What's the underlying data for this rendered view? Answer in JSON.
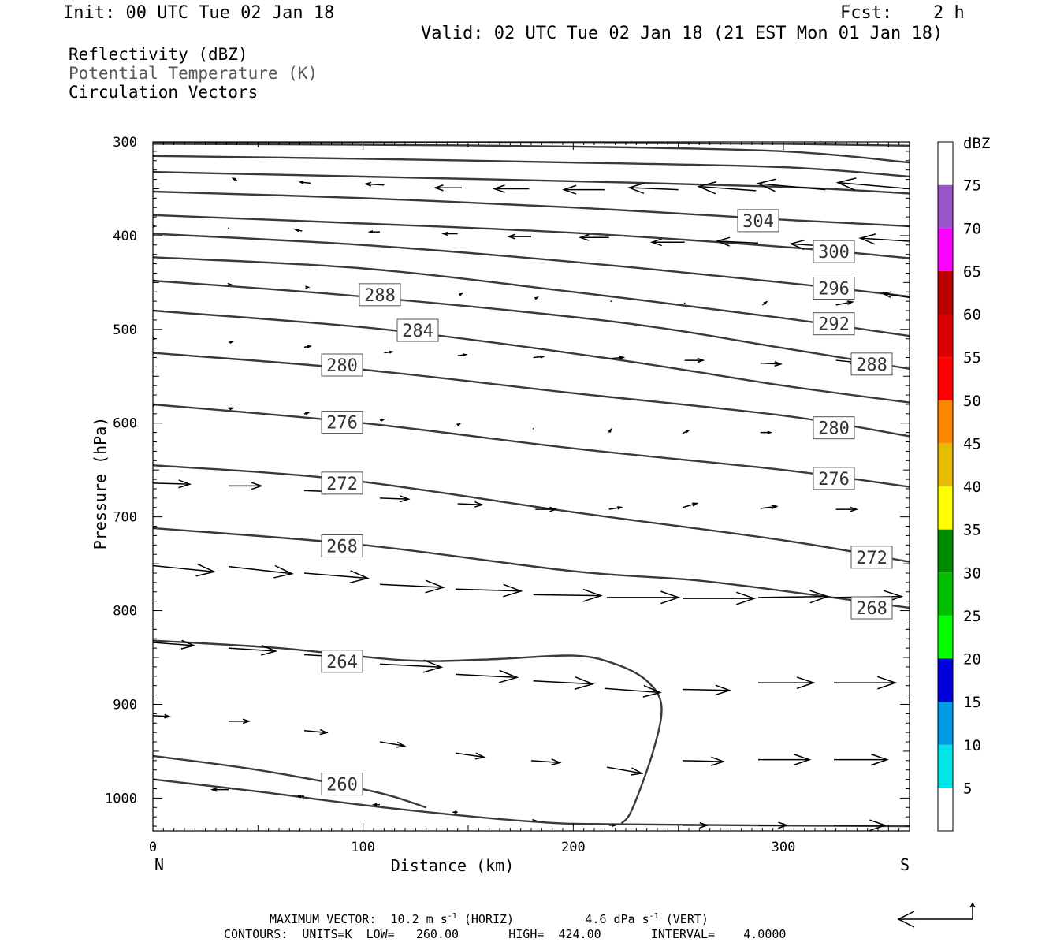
{
  "header": {
    "init": "Init: 00 UTC Tue 02 Jan 18",
    "fcst_label": "Fcst:",
    "fcst_value": "2 h",
    "valid": "Valid: 02 UTC Tue 02 Jan 18 (21 EST Mon 01 Jan 18)"
  },
  "legend": {
    "line1": "Reflectivity (dBZ)",
    "line2": "Potential Temperature (K)",
    "line3": "Circulation Vectors"
  },
  "footer": {
    "line1_prefix": "MAXIMUM VECTOR:  10.2 m s",
    "line1_sup1": "-1",
    "line1_mid": " (HORIZ)          4.6 dPa s",
    "line1_sup2": "-1",
    "line1_suffix": " (VERT)",
    "line2": "CONTOURS:  UNITS=K  LOW=   260.00       HIGH=  424.00       INTERVAL=    4.0000"
  },
  "colors": {
    "contour": "#3a3a3a",
    "vector": "#000000",
    "frame": "#000000"
  },
  "chart_data": {
    "type": "cross-section",
    "xlabel": "Distance (km)",
    "ylabel": "Pressure (hPa)",
    "xlim": [
      0,
      360
    ],
    "ylim": [
      1035,
      300
    ],
    "y_reversed": true,
    "x_ticks": [
      0,
      100,
      200,
      300
    ],
    "y_ticks": [
      300,
      400,
      500,
      600,
      700,
      800,
      900,
      1000
    ],
    "x_end_labels": {
      "left": "N",
      "right": "S"
    },
    "colorbar": {
      "title": "dBZ",
      "levels": [
        5,
        10,
        15,
        20,
        25,
        30,
        35,
        40,
        45,
        50,
        55,
        60,
        65,
        70,
        75
      ],
      "colors": [
        "#ffffff",
        "#00e6e6",
        "#0099e6",
        "#0000dd",
        "#00ff00",
        "#00c000",
        "#008800",
        "#ffff00",
        "#e6bb00",
        "#ff8800",
        "#ff0000",
        "#dd0000",
        "#bb0000",
        "#ff00ff",
        "#9955cc",
        "#ffffff"
      ]
    },
    "contours": [
      {
        "label": "260",
        "points": [
          [
            0,
            980
          ],
          [
            50,
            993
          ],
          [
            110,
            1010
          ],
          [
            180,
            1025
          ],
          [
            225,
            1028
          ],
          [
            360,
            1030
          ]
        ]
      },
      {
        "label": "260",
        "points": [
          [
            0,
            955
          ],
          [
            50,
            970
          ],
          [
            105,
            993
          ],
          [
            130,
            1010
          ]
        ]
      },
      {
        "label": "264",
        "points": [
          [
            0,
            832
          ],
          [
            60,
            840
          ],
          [
            120,
            853
          ],
          [
            160,
            852
          ],
          [
            200,
            848
          ],
          [
            220,
            857
          ],
          [
            235,
            875
          ],
          [
            242,
            902
          ],
          [
            238,
            950
          ],
          [
            228,
            1012
          ],
          [
            223,
            1027
          ]
        ]
      },
      {
        "label": "268",
        "points": [
          [
            0,
            712
          ],
          [
            100,
            730
          ],
          [
            200,
            758
          ],
          [
            260,
            768
          ],
          [
            320,
            785
          ],
          [
            360,
            797
          ]
        ]
      },
      {
        "label": "272",
        "points": [
          [
            0,
            645
          ],
          [
            90,
            660
          ],
          [
            200,
            695
          ],
          [
            300,
            725
          ],
          [
            360,
            748
          ]
        ]
      },
      {
        "label": "276",
        "points": [
          [
            0,
            580
          ],
          [
            100,
            600
          ],
          [
            200,
            627
          ],
          [
            300,
            650
          ],
          [
            360,
            668
          ]
        ]
      },
      {
        "label": "280",
        "points": [
          [
            0,
            525
          ],
          [
            100,
            543
          ],
          [
            200,
            568
          ],
          [
            300,
            592
          ],
          [
            360,
            614
          ]
        ]
      },
      {
        "label": "284",
        "points": [
          [
            0,
            480
          ],
          [
            110,
            500
          ],
          [
            220,
            532
          ],
          [
            300,
            560
          ],
          [
            360,
            578
          ]
        ]
      },
      {
        "label": "288",
        "points": [
          [
            0,
            448
          ],
          [
            100,
            465
          ],
          [
            220,
            492
          ],
          [
            300,
            520
          ],
          [
            360,
            542
          ]
        ]
      },
      {
        "label": "292",
        "points": [
          [
            0,
            423
          ],
          [
            100,
            435
          ],
          [
            200,
            460
          ],
          [
            300,
            488
          ],
          [
            360,
            507
          ]
        ]
      },
      {
        "label": "296",
        "points": [
          [
            0,
            398
          ],
          [
            100,
            410
          ],
          [
            200,
            428
          ],
          [
            300,
            450
          ],
          [
            360,
            465
          ]
        ]
      },
      {
        "label": "300",
        "points": [
          [
            0,
            378
          ],
          [
            100,
            387
          ],
          [
            200,
            397
          ],
          [
            300,
            412
          ],
          [
            360,
            424
          ]
        ]
      },
      {
        "label": "304",
        "points": [
          [
            0,
            353
          ],
          [
            100,
            360
          ],
          [
            200,
            370
          ],
          [
            300,
            383
          ],
          [
            360,
            390
          ]
        ]
      },
      {
        "label": "",
        "points": [
          [
            0,
            332
          ],
          [
            100,
            337
          ],
          [
            200,
            342
          ],
          [
            300,
            348
          ],
          [
            360,
            355
          ]
        ]
      },
      {
        "label": "",
        "points": [
          [
            0,
            315
          ],
          [
            100,
            318
          ],
          [
            200,
            322
          ],
          [
            300,
            327
          ],
          [
            360,
            337
          ]
        ]
      },
      {
        "label": "",
        "points": [
          [
            0,
            302
          ],
          [
            100,
            303
          ],
          [
            200,
            305
          ],
          [
            300,
            310
          ],
          [
            360,
            322
          ]
        ]
      },
      {
        "label": "",
        "points": [
          [
            0,
            300
          ],
          [
            60,
            300
          ],
          [
            200,
            301
          ],
          [
            300,
            302
          ],
          [
            360,
            304
          ]
        ]
      }
    ],
    "contour_labels": [
      {
        "text": "304",
        "x": 288,
        "p": 384
      },
      {
        "text": "300",
        "x": 324,
        "p": 417
      },
      {
        "text": "296",
        "x": 324,
        "p": 456
      },
      {
        "text": "288",
        "x": 108,
        "p": 463
      },
      {
        "text": "284",
        "x": 126,
        "p": 501
      },
      {
        "text": "292",
        "x": 324,
        "p": 494
      },
      {
        "text": "280",
        "x": 90,
        "p": 538
      },
      {
        "text": "288",
        "x": 342,
        "p": 537
      },
      {
        "text": "276",
        "x": 90,
        "p": 599
      },
      {
        "text": "280",
        "x": 324,
        "p": 605
      },
      {
        "text": "272",
        "x": 90,
        "p": 664
      },
      {
        "text": "276",
        "x": 324,
        "p": 659
      },
      {
        "text": "268",
        "x": 90,
        "p": 731
      },
      {
        "text": "272",
        "x": 342,
        "p": 743
      },
      {
        "text": "268",
        "x": 342,
        "p": 797
      },
      {
        "text": "264",
        "x": 90,
        "p": 854
      },
      {
        "text": "260",
        "x": 90,
        "p": 985
      }
    ],
    "vectors": [
      {
        "x": 0,
        "p": 330,
        "u": 0,
        "w": 0
      },
      {
        "x": 40,
        "p": 341,
        "u": -2,
        "w": 1
      },
      {
        "x": 75,
        "p": 344,
        "u": -5,
        "w": 0.5
      },
      {
        "x": 110,
        "p": 346,
        "u": -9,
        "w": 0.5
      },
      {
        "x": 147,
        "p": 349,
        "u": -13,
        "w": 0
      },
      {
        "x": 179,
        "p": 350,
        "u": -17,
        "w": 0
      },
      {
        "x": 215,
        "p": 351,
        "u": -20,
        "w": 0
      },
      {
        "x": 250,
        "p": 351,
        "u": -24,
        "w": 1
      },
      {
        "x": 287,
        "p": 352,
        "u": -28,
        "w": 2
      },
      {
        "x": 320,
        "p": 351,
        "u": -33,
        "w": 3
      },
      {
        "x": 360,
        "p": 350,
        "u": -35,
        "w": 3
      },
      {
        "x": 0,
        "p": 390,
        "u": 1,
        "w": 0
      },
      {
        "x": 36,
        "p": 392,
        "u": 0,
        "w": 0
      },
      {
        "x": 71,
        "p": 395,
        "u": -3,
        "w": 0.5
      },
      {
        "x": 108,
        "p": 396,
        "u": -5,
        "w": 0
      },
      {
        "x": 145,
        "p": 398,
        "u": -7,
        "w": 0
      },
      {
        "x": 180,
        "p": 401,
        "u": -11,
        "w": 0
      },
      {
        "x": 217,
        "p": 402,
        "u": -14,
        "w": 0
      },
      {
        "x": 253,
        "p": 407,
        "u": -16,
        "w": 0
      },
      {
        "x": 288,
        "p": 408,
        "u": -20,
        "w": 1
      },
      {
        "x": 325,
        "p": 412,
        "u": -22,
        "w": 1.5
      },
      {
        "x": 360,
        "p": 406,
        "u": -24,
        "w": 1.5
      },
      {
        "x": 0,
        "p": 448,
        "u": 1,
        "w": 0
      },
      {
        "x": 36,
        "p": 452,
        "u": 1,
        "w": 0
      },
      {
        "x": 73,
        "p": 455,
        "u": 1,
        "w": 0
      },
      {
        "x": 110,
        "p": 458,
        "u": 1,
        "w": 0
      },
      {
        "x": 146,
        "p": 463,
        "u": 1,
        "w": 0.5
      },
      {
        "x": 182,
        "p": 467,
        "u": 1,
        "w": 0.5
      },
      {
        "x": 218,
        "p": 470,
        "u": 0,
        "w": 0
      },
      {
        "x": 253,
        "p": 472,
        "u": 0,
        "w": 0
      },
      {
        "x": 290,
        "p": 474,
        "u": 2,
        "w": 1.5
      },
      {
        "x": 325,
        "p": 474,
        "u": 8,
        "w": 1.5
      },
      {
        "x": 360,
        "p": 466,
        "u": -13,
        "w": 2
      },
      {
        "x": 0,
        "p": 510,
        "u": 1,
        "w": 0
      },
      {
        "x": 36,
        "p": 514,
        "u": 2,
        "w": 0.5
      },
      {
        "x": 72,
        "p": 519,
        "u": 3,
        "w": 0.5
      },
      {
        "x": 110,
        "p": 525,
        "u": 4,
        "w": 0.5
      },
      {
        "x": 145,
        "p": 528,
        "u": 4,
        "w": 0.5
      },
      {
        "x": 181,
        "p": 530,
        "u": 5,
        "w": 0.5
      },
      {
        "x": 218,
        "p": 531,
        "u": 6,
        "w": 0.5
      },
      {
        "x": 253,
        "p": 533,
        "u": 9,
        "w": 0
      },
      {
        "x": 289,
        "p": 536,
        "u": 10,
        "w": -0.5
      },
      {
        "x": 325,
        "p": 533,
        "u": 10,
        "w": -1
      },
      {
        "x": 0,
        "p": 581,
        "u": 1,
        "w": 0.5
      },
      {
        "x": 36,
        "p": 585,
        "u": 2,
        "w": 0.5
      },
      {
        "x": 72,
        "p": 590,
        "u": 2,
        "w": 0.5
      },
      {
        "x": 108,
        "p": 597,
        "u": 2,
        "w": 0.5
      },
      {
        "x": 145,
        "p": 602,
        "u": 1,
        "w": 0.5
      },
      {
        "x": 181,
        "p": 606,
        "u": 0,
        "w": 0.5
      },
      {
        "x": 217,
        "p": 610,
        "u": 1,
        "w": 1.5
      },
      {
        "x": 252,
        "p": 611,
        "u": 3,
        "w": 1.5
      },
      {
        "x": 289,
        "p": 610,
        "u": 5,
        "w": 0
      },
      {
        "x": 325,
        "p": 610,
        "u": 7,
        "w": -0.5
      },
      {
        "x": 0,
        "p": 664,
        "u": 18,
        "w": -0.5
      },
      {
        "x": 36,
        "p": 667,
        "u": 16,
        "w": 0
      },
      {
        "x": 72,
        "p": 672,
        "u": 14,
        "w": -0.5
      },
      {
        "x": 108,
        "p": 680,
        "u": 14,
        "w": -0.5
      },
      {
        "x": 145,
        "p": 686,
        "u": 12,
        "w": -0.5
      },
      {
        "x": 182,
        "p": 692,
        "u": 10,
        "w": 0
      },
      {
        "x": 217,
        "p": 692,
        "u": 6,
        "w": 1
      },
      {
        "x": 252,
        "p": 690,
        "u": 7,
        "w": 2
      },
      {
        "x": 289,
        "p": 691,
        "u": 8,
        "w": 1
      },
      {
        "x": 325,
        "p": 692,
        "u": 10,
        "w": 0
      },
      {
        "x": 0,
        "p": 752,
        "u": 30,
        "w": -3
      },
      {
        "x": 36,
        "p": 753,
        "u": 31,
        "w": -3.5
      },
      {
        "x": 72,
        "p": 760,
        "u": 31,
        "w": -2.5
      },
      {
        "x": 108,
        "p": 772,
        "u": 31,
        "w": -1.5
      },
      {
        "x": 144,
        "p": 777,
        "u": 32,
        "w": -1
      },
      {
        "x": 181,
        "p": 783,
        "u": 33,
        "w": -0.5
      },
      {
        "x": 216,
        "p": 786,
        "u": 35,
        "w": 0
      },
      {
        "x": 252,
        "p": 787,
        "u": 35,
        "w": 0
      },
      {
        "x": 288,
        "p": 786,
        "u": 34,
        "w": 0.5
      },
      {
        "x": 324,
        "p": 786,
        "u": 33,
        "w": 0.5
      },
      {
        "x": 360,
        "p": 787,
        "u": 32,
        "w": 0.5
      },
      {
        "x": 0,
        "p": 834,
        "u": 20,
        "w": -1.5
      },
      {
        "x": 36,
        "p": 840,
        "u": 23,
        "w": -1.5
      },
      {
        "x": 72,
        "p": 847,
        "u": 27,
        "w": -1.5
      },
      {
        "x": 108,
        "p": 857,
        "u": 30,
        "w": -1.5
      },
      {
        "x": 144,
        "p": 868,
        "u": 30,
        "w": -1.5
      },
      {
        "x": 181,
        "p": 875,
        "u": 29,
        "w": -1.5
      },
      {
        "x": 215,
        "p": 883,
        "u": 27,
        "w": -2
      },
      {
        "x": 252,
        "p": 884,
        "u": 23,
        "w": -0.5
      },
      {
        "x": 288,
        "p": 877,
        "u": 27,
        "w": 0
      },
      {
        "x": 324,
        "p": 877,
        "u": 30,
        "w": 0
      },
      {
        "x": 0,
        "p": 912,
        "u": 8,
        "w": -0.5
      },
      {
        "x": 36,
        "p": 918,
        "u": 10,
        "w": 0
      },
      {
        "x": 72,
        "p": 928,
        "u": 11,
        "w": -1
      },
      {
        "x": 108,
        "p": 940,
        "u": 12,
        "w": -2
      },
      {
        "x": 144,
        "p": 952,
        "u": 14,
        "w": -2
      },
      {
        "x": 180,
        "p": 960,
        "u": 14,
        "w": -1
      },
      {
        "x": 216,
        "p": 967,
        "u": 17,
        "w": -3
      },
      {
        "x": 252,
        "p": 960,
        "u": 20,
        "w": -0.5
      },
      {
        "x": 288,
        "p": 959,
        "u": 25,
        "w": 0
      },
      {
        "x": 324,
        "p": 959,
        "u": 26,
        "w": 0
      },
      {
        "x": 36,
        "p": 991,
        "u": -8,
        "w": 0
      },
      {
        "x": 72,
        "p": 998,
        "u": -3,
        "w": 0
      },
      {
        "x": 108,
        "p": 1007,
        "u": -3,
        "w": 0
      },
      {
        "x": 145,
        "p": 1015,
        "u": -2,
        "w": 0
      },
      {
        "x": 181,
        "p": 1024,
        "u": 1,
        "w": 0
      },
      {
        "x": 217,
        "p": 1029,
        "u": 3,
        "w": 0
      },
      {
        "x": 252,
        "p": 1029,
        "u": 12,
        "w": 0
      },
      {
        "x": 288,
        "p": 1029,
        "u": 14,
        "w": 0
      },
      {
        "x": 324,
        "p": 1029,
        "u": 25,
        "w": 0
      }
    ]
  }
}
